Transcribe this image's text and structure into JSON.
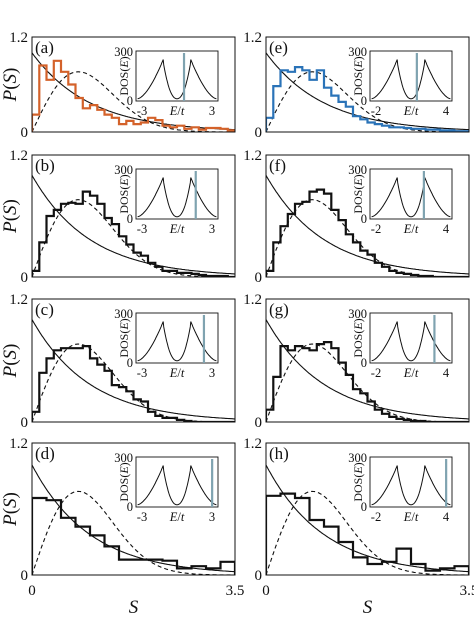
{
  "chart_data": [
    {
      "type": "histogram",
      "panel": "(a)",
      "hist_color": "#d4622a",
      "bin_width": 0.125,
      "heights": [
        0.22,
        0.84,
        0.66,
        0.9,
        0.76,
        0.6,
        0.43,
        0.3,
        0.34,
        0.28,
        0.22,
        0.18,
        0.1,
        0.14,
        0.1,
        0.12,
        0.18,
        0.15,
        0.08,
        0.06,
        0.08,
        0.04,
        0.06,
        0.03,
        0.05,
        0.05,
        0.04,
        0.02
      ],
      "inset": {
        "xticks": [
          "-3",
          "E/t",
          "3"
        ],
        "xrange": [
          -3.5,
          3.5
        ],
        "marker_E": 0.6,
        "yticks": [
          "0",
          "300"
        ],
        "ylabel": "DOS(E)"
      }
    },
    {
      "type": "histogram",
      "panel": "(b)",
      "hist_color": "#111111",
      "bin_width": 0.125,
      "heights": [
        0.06,
        0.34,
        0.6,
        0.66,
        0.72,
        0.73,
        0.72,
        0.84,
        0.8,
        0.72,
        0.58,
        0.52,
        0.4,
        0.32,
        0.24,
        0.21,
        0.14,
        0.1,
        0.06,
        0.06,
        0.04,
        0.04,
        0.03,
        0.02,
        0.01,
        0.01,
        0.01,
        0.0
      ],
      "inset": {
        "xticks": [
          "-3",
          "E/t",
          "3"
        ],
        "xrange": [
          -3.5,
          3.5
        ],
        "marker_E": 1.6,
        "yticks": [
          "0",
          "300"
        ],
        "ylabel": "DOS(E)"
      }
    },
    {
      "type": "histogram",
      "panel": "(c)",
      "hist_color": "#111111",
      "bin_width": 0.125,
      "heights": [
        0.1,
        0.48,
        0.62,
        0.7,
        0.72,
        0.72,
        0.72,
        0.74,
        0.62,
        0.56,
        0.5,
        0.36,
        0.34,
        0.3,
        0.22,
        0.2,
        0.1,
        0.06,
        0.04,
        0.04,
        0.02,
        0.01,
        0.0,
        0.0,
        0.0,
        0.0,
        0.0,
        0.0
      ],
      "inset": {
        "xticks": [
          "-3",
          "E/t",
          "3"
        ],
        "xrange": [
          -3.5,
          3.5
        ],
        "marker_E": 2.3,
        "yticks": [
          "0",
          "300"
        ],
        "ylabel": "DOS(E)"
      }
    },
    {
      "type": "histogram",
      "panel": "(d)",
      "hist_color": "#111111",
      "bin_width": 0.25,
      "heights": [
        0.7,
        0.68,
        0.52,
        0.44,
        0.36,
        0.26,
        0.14,
        0.14,
        0.14,
        0.13,
        0.06,
        0.08,
        0.06,
        0.12
      ],
      "inset": {
        "xticks": [
          "-3",
          "E/t",
          "3"
        ],
        "xrange": [
          -3.5,
          3.5
        ],
        "marker_E": 3.0,
        "yticks": [
          "0",
          "300"
        ],
        "ylabel": "DOS(E)"
      }
    },
    {
      "type": "histogram",
      "panel": "(e)",
      "hist_color": "#2a73b8",
      "bin_width": 0.125,
      "heights": [
        0.18,
        0.58,
        0.78,
        0.76,
        0.82,
        0.78,
        0.66,
        0.78,
        0.56,
        0.46,
        0.38,
        0.32,
        0.2,
        0.16,
        0.12,
        0.1,
        0.08,
        0.06,
        0.06,
        0.05,
        0.04,
        0.04,
        0.03,
        0.03,
        0.02,
        0.02,
        0.01,
        0.01
      ],
      "inset": {
        "xticks": [
          "-2",
          "E/t",
          "4"
        ],
        "xrange": [
          -2.5,
          4.5
        ],
        "marker_E": 1.5,
        "yticks": [
          "0",
          "300"
        ],
        "ylabel": "DOS(E)"
      }
    },
    {
      "type": "histogram",
      "panel": "(f)",
      "hist_color": "#111111",
      "bin_width": 0.125,
      "heights": [
        0.06,
        0.34,
        0.5,
        0.62,
        0.72,
        0.74,
        0.84,
        0.86,
        0.82,
        0.66,
        0.56,
        0.42,
        0.34,
        0.26,
        0.22,
        0.14,
        0.1,
        0.06,
        0.04,
        0.03,
        0.02,
        0.01,
        0.01,
        0.0,
        0.0,
        0.0,
        0.0,
        0.0
      ],
      "inset": {
        "xticks": [
          "-2",
          "E/t",
          "4"
        ],
        "xrange": [
          -2.5,
          4.5
        ],
        "marker_E": 2.1,
        "yticks": [
          "0",
          "300"
        ],
        "ylabel": "DOS(E)"
      }
    },
    {
      "type": "histogram",
      "panel": "(g)",
      "hist_color": "#111111",
      "bin_width": 0.125,
      "heights": [
        0.12,
        0.44,
        0.74,
        0.7,
        0.74,
        0.72,
        0.7,
        0.76,
        0.78,
        0.72,
        0.58,
        0.46,
        0.32,
        0.28,
        0.2,
        0.12,
        0.08,
        0.05,
        0.03,
        0.02,
        0.01,
        0.01,
        0.0,
        0.0,
        0.0,
        0.0,
        0.0,
        0.0
      ],
      "inset": {
        "xticks": [
          "-2",
          "E/t",
          "4"
        ],
        "xrange": [
          -2.5,
          4.5
        ],
        "marker_E": 3.0,
        "yticks": [
          "0",
          "300"
        ],
        "ylabel": "DOS(E)"
      }
    },
    {
      "type": "histogram",
      "panel": "(h)",
      "hist_color": "#111111",
      "bin_width": 0.25,
      "heights": [
        0.72,
        0.74,
        0.7,
        0.5,
        0.44,
        0.3,
        0.16,
        0.1,
        0.12,
        0.24,
        0.1,
        0.04,
        0.06,
        0.08
      ],
      "inset": {
        "xticks": [
          "-2",
          "E/t",
          "4"
        ],
        "xrange": [
          -2.5,
          4.5
        ],
        "marker_E": 4.0,
        "yticks": [
          "0",
          "300"
        ],
        "ylabel": "DOS(E)"
      }
    }
  ],
  "shared": {
    "ylabel": "P(S)",
    "xlabel": "S",
    "xlim": [
      0,
      3.5
    ],
    "ylim": [
      0,
      1.2
    ],
    "yticks": [
      "0",
      "1.2"
    ],
    "xticks": [
      "0",
      "3.5"
    ],
    "curves": [
      "Poisson exp(-S)",
      "GOE Wigner surmise (π/2) S exp(-πS²/4)"
    ]
  }
}
